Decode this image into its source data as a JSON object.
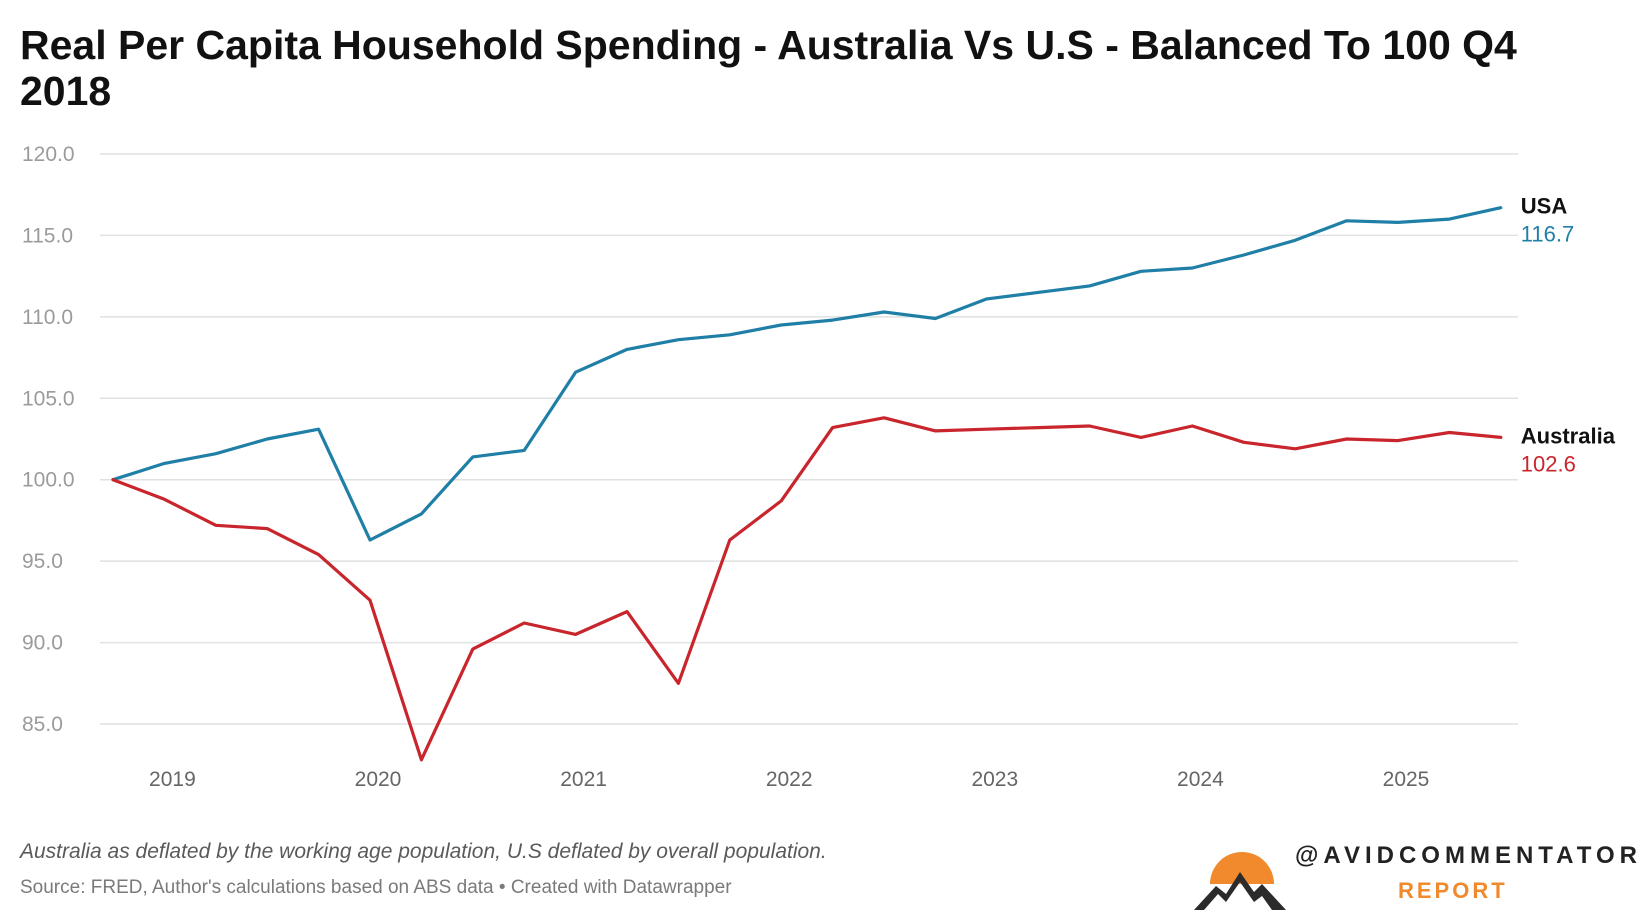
{
  "chart_data": {
    "type": "line",
    "title": "Real Per Capita Household Spending - Australia Vs U.S - Balanced To 100 Q4 2018",
    "xlabel": "",
    "ylabel": "",
    "ylim": [
      83,
      120
    ],
    "yticks": [
      "85.0",
      "90.0",
      "95.0",
      "100.0",
      "105.0",
      "110.0",
      "115.0",
      "120.0"
    ],
    "xticks": [
      "2019",
      "2020",
      "2021",
      "2022",
      "2023",
      "2024",
      "2025"
    ],
    "x": [
      "Q4 2018",
      "Q1 2019",
      "Q2 2019",
      "Q3 2019",
      "Q4 2019",
      "Q1 2020",
      "Q2 2020",
      "Q3 2020",
      "Q4 2020",
      "Q1 2021",
      "Q2 2021",
      "Q3 2021",
      "Q4 2021",
      "Q1 2022",
      "Q2 2022",
      "Q3 2022",
      "Q4 2022",
      "Q1 2023",
      "Q2 2023",
      "Q3 2023",
      "Q4 2023",
      "Q1 2024",
      "Q2 2024",
      "Q3 2024",
      "Q4 2024",
      "Q1 2025",
      "Q2 2025",
      "Q3 2025"
    ],
    "series": [
      {
        "name": "USA",
        "end_label": "116.7",
        "color": "#1f7fa6",
        "values": [
          100.0,
          101.0,
          101.6,
          102.5,
          103.1,
          96.3,
          97.9,
          101.4,
          101.8,
          106.6,
          108.0,
          108.6,
          108.9,
          109.5,
          109.8,
          110.3,
          109.9,
          111.1,
          111.5,
          111.9,
          112.8,
          113.0,
          113.8,
          114.7,
          115.9,
          115.8,
          116.0,
          116.7
        ]
      },
      {
        "name": "Australia",
        "end_label": "102.6",
        "color": "#c8252c",
        "values": [
          100.0,
          98.8,
          97.2,
          97.0,
          95.4,
          92.6,
          82.8,
          89.6,
          91.2,
          90.5,
          91.9,
          87.5,
          96.3,
          98.7,
          103.2,
          103.8,
          103.0,
          103.1,
          103.2,
          103.3,
          102.6,
          103.3,
          102.3,
          101.9,
          102.5,
          102.4,
          102.9,
          102.6
        ]
      }
    ]
  },
  "footnote": "Australia as deflated by the working age population, U.S deflated by overall population.",
  "source": "Source: FRED, Author's calculations based on ABS data • Created with Datawrapper",
  "brand": {
    "handle": "@AVIDCOMMENTATOR",
    "sub": "REPORT",
    "sun_color": "#f08a2c",
    "mountain_color": "#2b2b2b"
  }
}
